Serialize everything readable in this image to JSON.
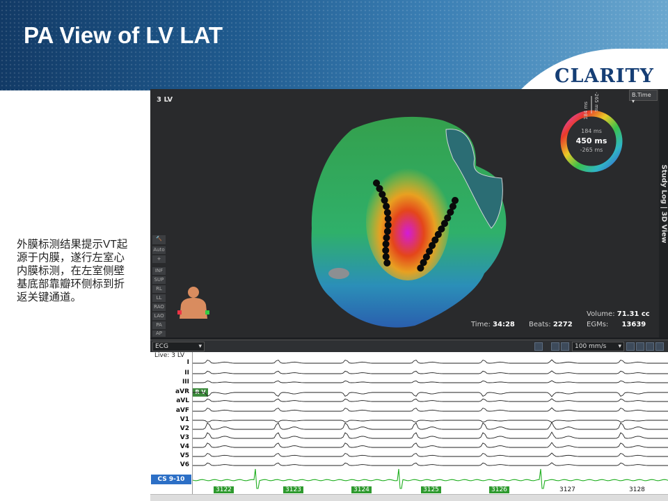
{
  "slide": {
    "title": "PA View of LV LAT",
    "logo": "CLARITY",
    "note": "外膜标测结果提示VT起源于内膜，遂行左室心内膜标测，在左室侧壁基底部靠瓣环侧标到折返关键通道。"
  },
  "map": {
    "label": "3 LV",
    "dropdown": "B.Time",
    "sidetab": "Study Log | 3D View",
    "wheel": {
      "top": "184 ms",
      "center": "450 ms",
      "bottom": "-265 ms",
      "tick_a": "184 ms",
      "tick_b": "-265 ms"
    },
    "tools": [
      "Auto",
      "+",
      "INF",
      "SUP",
      "RL",
      "LL",
      "RAO",
      "LAO",
      "PA",
      "AP"
    ],
    "volume_label": "Volume:",
    "volume_value": "71.31 cc",
    "time_label": "Time:",
    "time_value": "34:28",
    "beats_label": "Beats:",
    "beats_value": "2272",
    "egms_label": "EGMs:",
    "egms_value": "13639"
  },
  "ecg": {
    "selector": "ECG",
    "live": "Live: 3 LV",
    "speed": "100 mm/s",
    "leads": [
      "I",
      "II",
      "III",
      "aVR",
      "aVL",
      "aVF",
      "V1",
      "V2",
      "V3",
      "V4",
      "V5",
      "V6"
    ],
    "cs_label": "CS 9-10",
    "rv_label": "R V",
    "beat_numbers": [
      "3122",
      "3123",
      "3124",
      "3125",
      "3126",
      "3127",
      "3128"
    ]
  },
  "colors": {
    "banner": "#1f5a8e",
    "logo": "#153e75",
    "cs": "#2c6fc6",
    "csline": "#1fae1f"
  }
}
